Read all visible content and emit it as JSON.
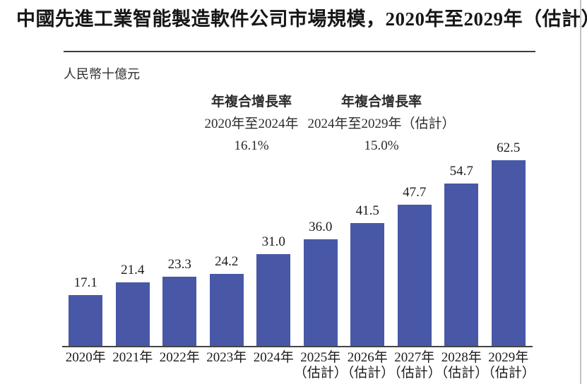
{
  "page": {
    "title": "中國先進工業智能製造軟件公司市場規模，2020年至2029年（估計）",
    "unit_label": "人民幣十億元"
  },
  "annotations": [
    {
      "heading": "年複合增長率",
      "period": "2020年至2024年",
      "value": "16.1%"
    },
    {
      "heading": "年複合增長率",
      "period": "2024年至2029年（估計）",
      "value": "15.0%"
    }
  ],
  "chart_data": {
    "type": "bar",
    "title": "中國先進工業智能製造軟件公司市場規模，2020年至2029年（估計）",
    "unit": "人民幣十億元",
    "categories": [
      "2020年",
      "2021年",
      "2022年",
      "2023年",
      "2024年",
      "2025年（估計）",
      "2026年（估計）",
      "2027年（估計）",
      "2028年（估計）",
      "2029年（估計）"
    ],
    "values": [
      17.1,
      21.4,
      23.3,
      24.2,
      31.0,
      36.0,
      41.5,
      47.7,
      54.7,
      62.5
    ],
    "value_label_decimals": 1,
    "bar_color": "#4858a7",
    "axis_color": "#454545",
    "cagr_annotations": [
      {
        "heading": "年複合增長率",
        "period": "2020年至2024年",
        "value": "16.1%"
      },
      {
        "heading": "年複合增長率",
        "period": "2024年至2029年（估計）",
        "value": "15.0%"
      }
    ],
    "xlabel": "",
    "ylabel": "人民幣十億元",
    "legend": false,
    "grid": false
  }
}
